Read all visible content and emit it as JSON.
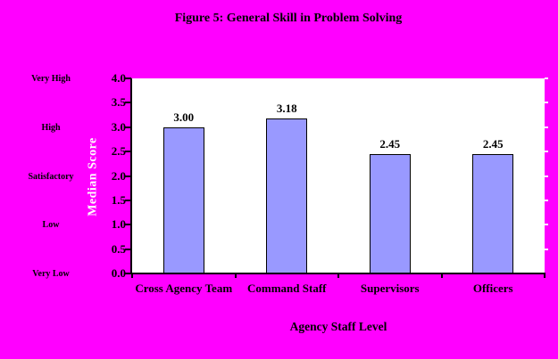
{
  "chart_data": {
    "type": "bar",
    "title": "Figure 5: General Skill in Problem Solving",
    "xlabel": "Agency Staff Level",
    "ylabel": "Median Score",
    "categories": [
      "Cross Agency Team",
      "Command Staff",
      "Supervisors",
      "Officers"
    ],
    "values": [
      3.0,
      3.18,
      2.45,
      2.45
    ],
    "value_labels": [
      "3.00",
      "3.18",
      "2.45",
      "2.45"
    ],
    "ylim": [
      0,
      4
    ],
    "yticks": [
      "0.0",
      "0.5",
      "1.0",
      "1.5",
      "2.0",
      "2.5",
      "3.0",
      "3.5",
      "4.0"
    ],
    "y_scale_labels": [
      {
        "label": "Very High",
        "value": 4.0
      },
      {
        "label": "High",
        "value": 3.0
      },
      {
        "label": "Satisfactory",
        "value": 2.0
      },
      {
        "label": "Low",
        "value": 1.0
      },
      {
        "label": "Very Low",
        "value": 0.0
      }
    ],
    "grid": false,
    "legend": null,
    "colors": {
      "background": "#FF00FF",
      "plot_background": "#FFFFFF",
      "bar_fill": "#9999FF",
      "bar_border": "#000000",
      "text": "#000000",
      "ylabel_text": "#FFFFFF"
    }
  }
}
